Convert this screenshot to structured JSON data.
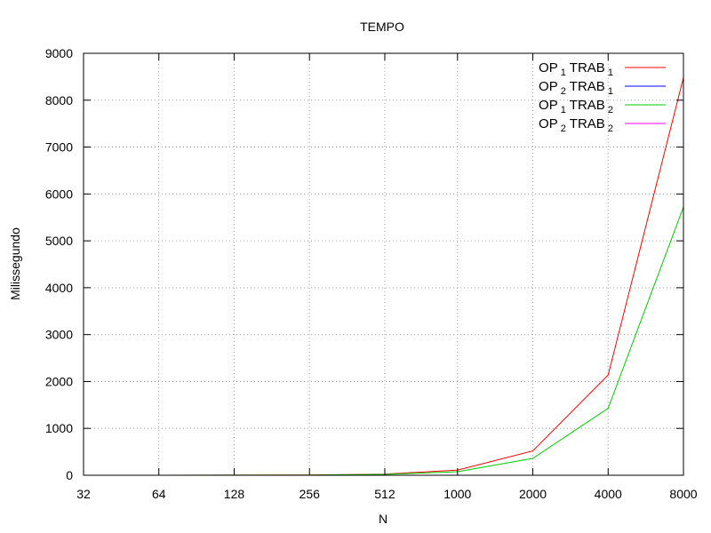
{
  "chart_data": {
    "type": "line",
    "title": "TEMPO",
    "xlabel": "N",
    "ylabel": "Milissegundo",
    "x_scale": "log2",
    "xlim": [
      32,
      8000
    ],
    "ylim": [
      0,
      9000
    ],
    "x_ticks": [
      "32",
      "64",
      "128",
      "256",
      "512",
      "1000",
      "2000",
      "4000",
      "8000"
    ],
    "y_ticks": [
      "0",
      "1000",
      "2000",
      "3000",
      "4000",
      "5000",
      "6000",
      "7000",
      "8000",
      "9000"
    ],
    "grid": true,
    "legend_position": "top-right",
    "x": [
      32,
      64,
      128,
      256,
      512,
      1000,
      2000,
      4000,
      8000
    ],
    "series": [
      {
        "name_base": "OP",
        "name_sub1": "1",
        "name_mid": " TRAB",
        "name_sub2": "1",
        "color": "#ff0000",
        "values": [
          0,
          0,
          1,
          3,
          25,
          110,
          520,
          2140,
          8480
        ]
      },
      {
        "name_base": "OP",
        "name_sub1": "2",
        "name_mid": " TRAB",
        "name_sub2": "1",
        "color": "#0000ff",
        "values": [
          null,
          null,
          null,
          null,
          null,
          null,
          null,
          0,
          0
        ]
      },
      {
        "name_base": "OP",
        "name_sub1": "1",
        "name_mid": " TRAB",
        "name_sub2": "2",
        "color": "#00cc00",
        "values": [
          0,
          0,
          1,
          2,
          18,
          75,
          360,
          1430,
          5720
        ]
      },
      {
        "name_base": "OP",
        "name_sub1": "2",
        "name_mid": " TRAB",
        "name_sub2": "2",
        "color": "#ff00ff",
        "values": [
          null,
          null,
          null,
          null,
          null,
          null,
          null,
          null,
          null
        ]
      }
    ]
  }
}
